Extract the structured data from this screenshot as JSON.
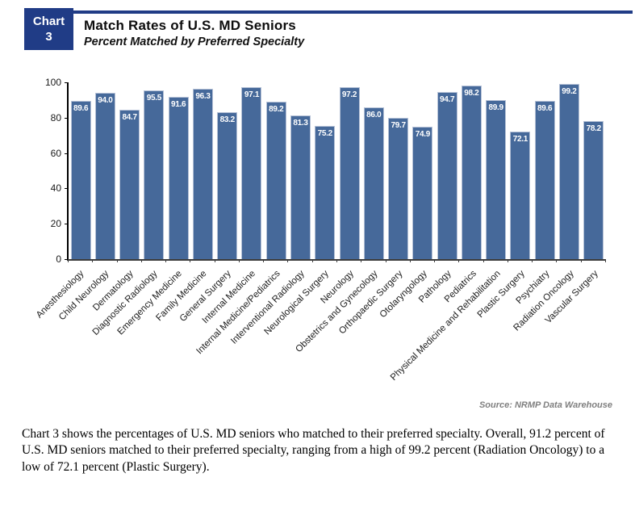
{
  "header": {
    "badge_line1": "Chart",
    "badge_line2": "3",
    "title": "Match Rates of U.S. MD Seniors",
    "subtitle": "Percent Matched by Preferred Specialty"
  },
  "chart_data": {
    "type": "bar",
    "title": "Match Rates of U.S. MD Seniors",
    "subtitle": "Percent Matched by Preferred Specialty",
    "categories": [
      "Anesthesiology",
      "Child Neurology",
      "Dermatology",
      "Diagnostic Radiology",
      "Emergency Medicine",
      "Family Medicine",
      "General Surgery",
      "Internal Medicine",
      "Internal Medicine/Pediatrics",
      "Interventional Radiology",
      "Neurological Surgery",
      "Neurology",
      "Obstetrics and Gynecology",
      "Orthopaedic Surgery",
      "Otolaryngology",
      "Pathology",
      "Pediatrics",
      "Physical Medicine and Rehabilitation",
      "Plastic Surgery",
      "Psychiatry",
      "Radiation Oncology",
      "Vascular Surgery"
    ],
    "values": [
      89.6,
      94.0,
      84.7,
      95.5,
      91.6,
      96.3,
      83.2,
      97.1,
      89.2,
      81.3,
      75.2,
      97.2,
      86.0,
      79.7,
      74.9,
      94.7,
      98.2,
      89.9,
      72.1,
      89.6,
      99.2,
      78.2
    ],
    "xlabel": "",
    "ylabel": "",
    "ylim": [
      0,
      100
    ],
    "yticks": [
      0,
      20,
      40,
      60,
      80,
      100
    ],
    "grid": false,
    "legend": "none",
    "value_label_position": "inside-top",
    "value_label_color": "#ffffff",
    "bar_color": "#46699a",
    "bar_border_color": "#b5c1d6",
    "x_label_rotation_deg": -45
  },
  "source": "Source: NRMP Data Warehouse",
  "caption": "Chart 3 shows the percentages of U.S. MD seniors who matched to their preferred specialty. Overall, 91.2 percent of U.S. MD seniors matched to their preferred specialty, ranging from a high of 99.2 percent (Radiation Oncology) to a low of 72.1 percent (Plastic Surgery)."
}
